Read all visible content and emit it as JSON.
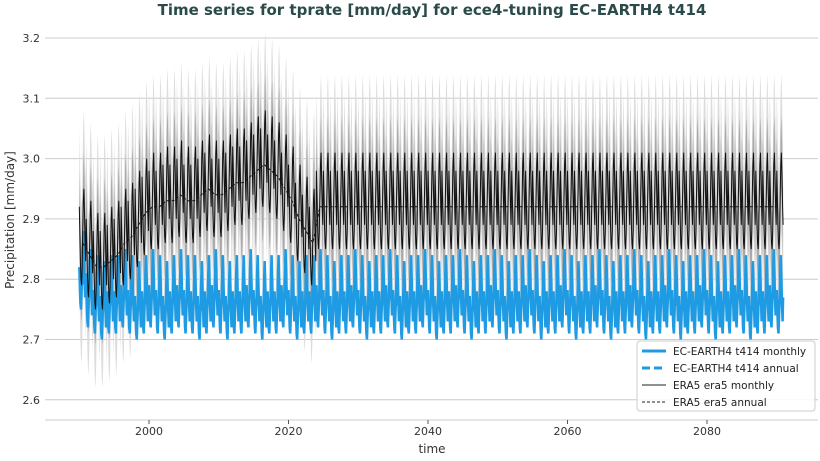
{
  "chart_data": {
    "type": "line",
    "title": "Time series for tprate [mm/day] for ece4-tuning EC-EARTH4 t414",
    "xlabel": "time",
    "ylabel": "Precipitation [mm/day]",
    "xlim": [
      1986,
      2094
    ],
    "ylim": [
      2.58,
      3.21
    ],
    "xticks": [
      "2000",
      "2020",
      "2040",
      "2060",
      "2080"
    ],
    "yticks": [
      "2.6",
      "2.7",
      "2.8",
      "2.9",
      "3.0",
      "3.1",
      "3.2"
    ],
    "grid": "horizontal",
    "legend_position": "bottom-right",
    "colors": {
      "ec_earth": "#1f9be3",
      "era5": "#000000",
      "band_inner": "#a8a8a8",
      "band_outer": "#dcdcdc",
      "grid": "#cccccc",
      "title": "#2b4a4a"
    },
    "series": [
      {
        "name": "EC-EARTH4 t414 monthly",
        "style": "solid-thick",
        "start_year": 1990,
        "annual_mean": [
          2.8,
          2.77,
          2.76,
          2.75,
          2.76,
          2.76,
          2.77,
          2.76,
          2.75,
          2.76,
          2.77,
          2.76,
          2.75,
          2.76,
          2.77,
          2.76,
          2.76,
          2.75,
          2.76,
          2.77,
          2.76,
          2.75,
          2.76,
          2.76,
          2.77,
          2.76,
          2.75,
          2.76,
          2.76,
          2.77,
          2.76,
          2.75,
          2.76,
          2.76,
          2.77,
          2.76,
          2.75,
          2.76,
          2.76,
          2.77,
          2.76,
          2.75,
          2.76,
          2.76,
          2.77,
          2.76,
          2.75,
          2.76,
          2.76,
          2.77,
          2.76,
          2.75,
          2.76,
          2.76,
          2.77,
          2.76,
          2.75,
          2.76,
          2.76,
          2.77,
          2.76,
          2.75,
          2.76,
          2.76,
          2.77,
          2.76,
          2.75,
          2.76,
          2.76,
          2.77,
          2.76,
          2.75,
          2.76,
          2.76,
          2.77,
          2.76,
          2.75,
          2.76,
          2.76,
          2.77,
          2.76,
          2.75,
          2.76,
          2.76,
          2.77,
          2.76,
          2.75,
          2.76,
          2.76,
          2.77,
          2.76,
          2.75,
          2.76,
          2.76,
          2.77,
          2.76,
          2.75,
          2.76,
          2.76,
          2.77,
          2.76
        ],
        "monthly_anomaly": [
          0.02,
          -0.01,
          -0.04,
          -0.05,
          -0.02,
          0.01,
          0.05,
          0.08,
          0.04,
          0.0,
          -0.03,
          0.01
        ]
      },
      {
        "name": "EC-EARTH4 t414 annual",
        "style": "dashed-thick",
        "start_year": 1990,
        "same_as_annual_mean_of": "EC-EARTH4 t414 monthly"
      },
      {
        "name": "ERA5 era5 monthly",
        "style": "solid-thin",
        "start_year": 1990,
        "annual_mean": [
          2.86,
          2.84,
          2.82,
          2.82,
          2.83,
          2.84,
          2.86,
          2.87,
          2.89,
          2.91,
          2.92,
          2.92,
          2.93,
          2.93,
          2.94,
          2.93,
          2.93,
          2.94,
          2.95,
          2.94,
          2.94,
          2.95,
          2.96,
          2.96,
          2.97,
          2.98,
          2.99,
          2.98,
          2.97,
          2.95,
          2.93,
          2.9,
          2.88,
          2.86,
          2.92
        ],
        "flat_after_value": 2.92,
        "end_year": 2091,
        "monthly_anomaly": [
          0.06,
          0.02,
          -0.03,
          -0.06,
          -0.07,
          -0.04,
          0.02,
          0.07,
          0.09,
          0.05,
          0.0,
          -0.03
        ]
      },
      {
        "name": "ERA5 era5 annual",
        "style": "dashed-thin",
        "start_year": 1990,
        "same_as_annual_mean_of": "ERA5 era5 monthly"
      }
    ],
    "era5_band_halfwidth": {
      "inner": 0.06,
      "outer": 0.13
    }
  }
}
